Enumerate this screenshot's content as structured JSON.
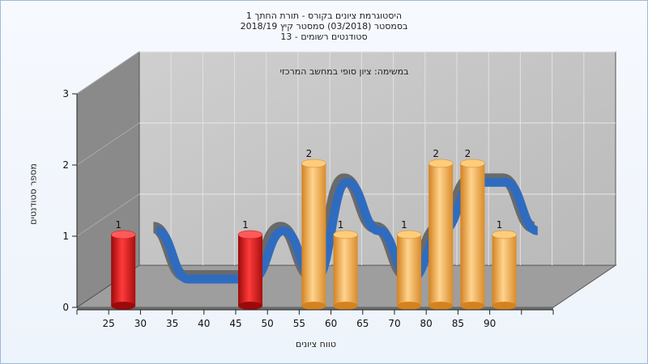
{
  "titles": {
    "line1": "היסטוגרמת ציונים בקורס - תורת החתך 1",
    "line2": "בסמסטר  (03/2018)  סמסטר קיץ 2018/19",
    "line3": "סטודנטים רשומים - 13"
  },
  "chart_data": {
    "type": "bar",
    "annotation": "במשימה: ציון סופי במחשב המרכזי",
    "xlabel": "טווח ציונים",
    "ylabel": "מספר סטודנטים",
    "ylim": [
      0,
      3
    ],
    "yticks": [
      "0",
      "1",
      "2",
      "3"
    ],
    "categories": [
      "25",
      "30",
      "35",
      "40",
      "45",
      "50",
      "55",
      "60",
      "65",
      "70",
      "80",
      "85",
      "90"
    ],
    "values": [
      1,
      0,
      0,
      0,
      1,
      0,
      2,
      1,
      0,
      1,
      2,
      2,
      1
    ],
    "bar_colors": [
      "red",
      "red",
      "red",
      "red",
      "red",
      "red",
      "orange",
      "orange",
      "orange",
      "orange",
      "orange",
      "orange",
      "orange"
    ],
    "grid": true,
    "legend": "none",
    "colors": {
      "red_bar": "#d91c1c",
      "orange_bar": "#f0a64a",
      "curve_front": "#2f6cbf",
      "curve_back": "#6a6a6a",
      "wall": "#c2c2c2",
      "side_wall": "#8a8a8a",
      "floor": "#9e9e9e"
    }
  }
}
